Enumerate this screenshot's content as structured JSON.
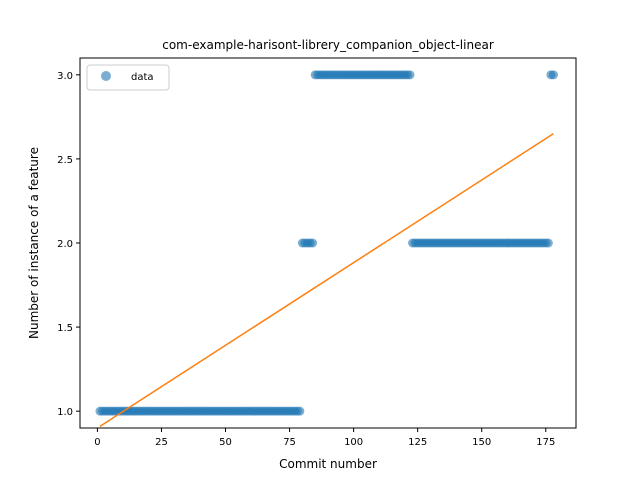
{
  "chart_data": {
    "type": "scatter",
    "title": "com-example-harisont-librery_companion_object-linear",
    "xlabel": "Commit number",
    "ylabel": "Number of instance of a feature",
    "xlim": [
      -6.8,
      186.8
    ],
    "ylim": [
      0.9,
      3.1
    ],
    "xticks": [
      0,
      25,
      50,
      75,
      100,
      125,
      150,
      175
    ],
    "yticks": [
      1.0,
      1.5,
      2.0,
      2.5,
      3.0
    ],
    "xtick_labels": [
      "0",
      "25",
      "50",
      "75",
      "100",
      "125",
      "150",
      "175"
    ],
    "ytick_labels": [
      "1.0",
      "1.5",
      "2.0",
      "2.5",
      "3.0"
    ],
    "grid": false,
    "legend": {
      "position": "top-left",
      "entries": [
        "data"
      ]
    },
    "colors": {
      "data": "#1f77b4",
      "fit": "#ff7f0e"
    },
    "series": [
      {
        "name": "data",
        "kind": "scatter",
        "segments": [
          {
            "x_start": 1,
            "x_end": 79,
            "y": 1.0
          },
          {
            "x_start": 80,
            "x_end": 84,
            "y": 2.0
          },
          {
            "x_start": 85,
            "x_end": 122,
            "y": 3.0
          },
          {
            "x_start": 123,
            "x_end": 176,
            "y": 2.0
          },
          {
            "x_start": 177,
            "x_end": 178,
            "y": 3.0
          }
        ]
      },
      {
        "kind": "line",
        "x": [
          1,
          178
        ],
        "y": [
          0.91,
          2.65
        ]
      }
    ]
  }
}
